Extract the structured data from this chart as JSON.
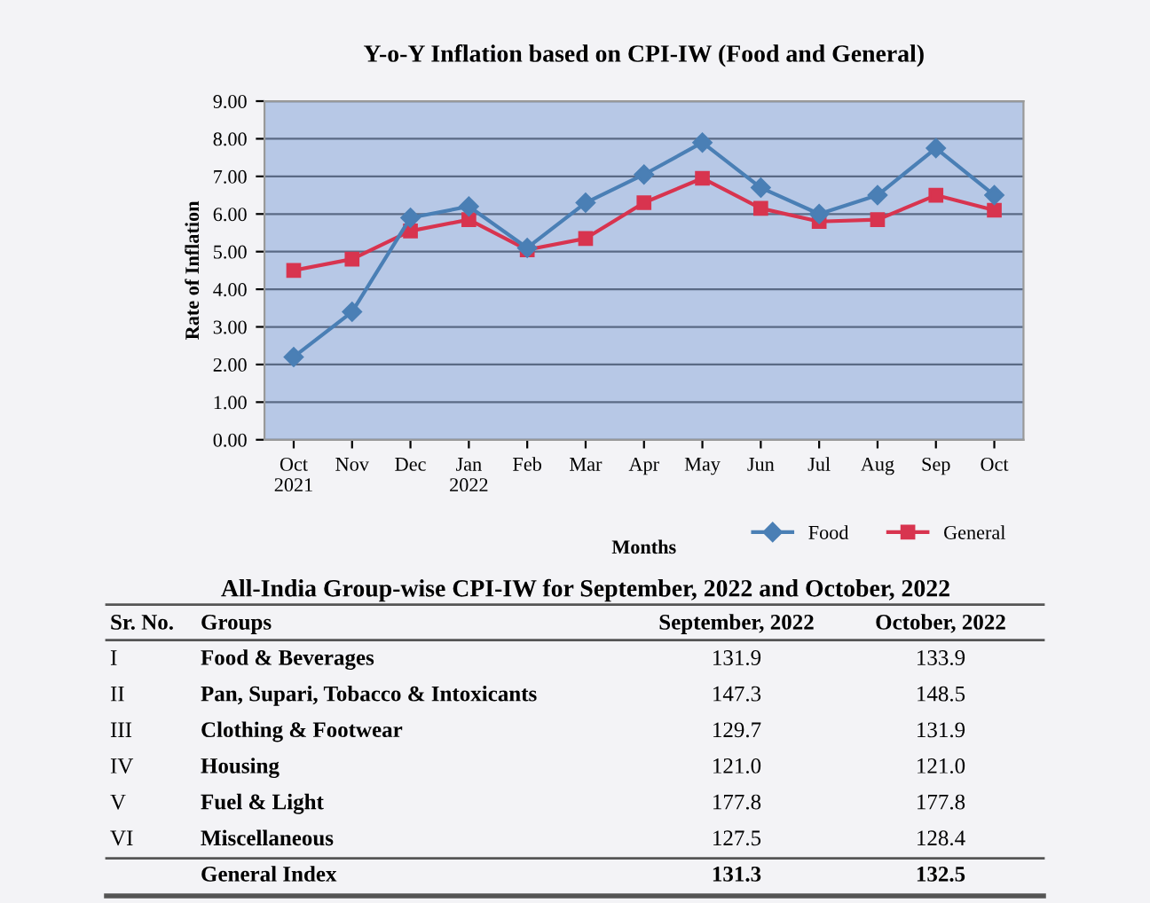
{
  "chart_data": [
    {
      "type": "line",
      "title": "Y-o-Y Inflation based on CPI-IW (Food and General)",
      "xlabel": "Months",
      "ylabel": "Rate of Inflation",
      "categories": [
        "Oct\n2021",
        "Nov",
        "Dec",
        "Jan\n2022",
        "Feb",
        "Mar",
        "Apr",
        "May",
        "Jun",
        "Jul",
        "Aug",
        "Sep",
        "Oct"
      ],
      "series": [
        {
          "name": "Food",
          "color": "#4a7fb5",
          "marker": "diamond",
          "values": [
            2.2,
            3.4,
            5.9,
            6.2,
            5.1,
            6.3,
            7.05,
            7.9,
            6.7,
            6.0,
            6.5,
            7.75,
            6.5
          ]
        },
        {
          "name": "General",
          "color": "#d8344f",
          "marker": "square",
          "values": [
            4.5,
            4.8,
            5.55,
            5.85,
            5.05,
            5.35,
            6.3,
            6.95,
            6.15,
            5.8,
            5.85,
            6.5,
            6.1
          ]
        }
      ],
      "ylim": [
        0,
        9
      ],
      "yticks": [
        {
          "value": 0,
          "label": "0.00"
        },
        {
          "value": 1,
          "label": "1.00"
        },
        {
          "value": 2,
          "label": "2.00"
        },
        {
          "value": 3,
          "label": "3.00"
        },
        {
          "value": 4,
          "label": "4.00"
        },
        {
          "value": 5,
          "label": "5.00"
        },
        {
          "value": 6,
          "label": "6.00"
        },
        {
          "value": 7,
          "label": "7.00"
        },
        {
          "value": 8,
          "label": "8.00"
        },
        {
          "value": 9,
          "label": "9.00"
        }
      ],
      "grid": "y",
      "legend": "bottom right",
      "line_style": "solid"
    },
    {
      "type": "other",
      "title": "All-India Group-wise CPI-IW for September, 2022 and October, 2022",
      "annotations": [
        "Sr. No.",
        "Groups"
      ],
      "y_categories": [
        "I",
        "II",
        "III",
        "IV",
        "V",
        "VI",
        null
      ],
      "categories": [
        "Food & Beverages",
        "Pan, Supari, Tobacco & Intoxicants",
        "Clothing & Footwear",
        "Housing",
        "Fuel & Light",
        "Miscellaneous",
        "General Index"
      ],
      "series": [
        {
          "name": "September, 2022",
          "values": [
            131.9,
            147.3,
            129.7,
            121.0,
            177.8,
            127.5,
            131.3
          ],
          "value_labels": [
            "131.9",
            "147.3",
            "129.7",
            "121.0",
            "177.8",
            "127.5",
            "131.3"
          ]
        },
        {
          "name": "October, 2022",
          "values": [
            133.9,
            148.5,
            131.9,
            121.0,
            177.8,
            128.4,
            132.5
          ],
          "value_labels": [
            "133.9",
            "148.5",
            "131.9",
            "121.0",
            "177.8",
            "128.4",
            "132.5"
          ]
        }
      ]
    }
  ]
}
